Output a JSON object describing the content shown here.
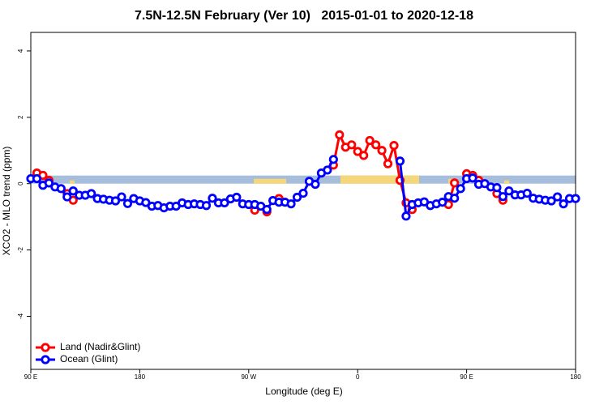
{
  "chart_data": {
    "type": "line",
    "title": "7.5N-12.5N February (Ver 10)   2015-01-01 to 2020-12-18",
    "x_label": "Longitude (deg E)",
    "y_label": "XCO2 - MLO trend (ppm)",
    "x": [
      90,
      95,
      100,
      105,
      110,
      115,
      120,
      125,
      130,
      135,
      140,
      145,
      150,
      155,
      160,
      165,
      170,
      175,
      180,
      185,
      190,
      195,
      200,
      205,
      210,
      215,
      220,
      225,
      230,
      235,
      240,
      245,
      250,
      255,
      260,
      265,
      270,
      275,
      280,
      285,
      290,
      295,
      300,
      305,
      310,
      315,
      320,
      325,
      330,
      335,
      340,
      345,
      350,
      355,
      360,
      365,
      370,
      375,
      380,
      385,
      390,
      395,
      400,
      405,
      410,
      415,
      420,
      425,
      430,
      435,
      440,
      445,
      450,
      455,
      460,
      465,
      470,
      475,
      480,
      485,
      490,
      495,
      500,
      505,
      510,
      515,
      520,
      525,
      530,
      535,
      540
    ],
    "series": [
      {
        "name": "Land (Nadir&Glint)",
        "color": "#ff0000",
        "values": [
          null,
          0.32,
          0.25,
          0.1,
          null,
          null,
          -0.3,
          -0.5,
          null,
          null,
          null,
          null,
          null,
          null,
          null,
          null,
          null,
          null,
          null,
          null,
          null,
          null,
          null,
          null,
          null,
          null,
          null,
          null,
          null,
          null,
          null,
          null,
          null,
          null,
          null,
          null,
          null,
          -0.8,
          null,
          -0.85,
          null,
          -0.45,
          null,
          null,
          null,
          null,
          null,
          null,
          null,
          null,
          0.56,
          1.47,
          1.1,
          1.17,
          0.97,
          0.85,
          1.3,
          1.17,
          1.0,
          0.6,
          1.15,
          0.1,
          -0.58,
          -0.78,
          null,
          null,
          null,
          null,
          null,
          -0.63,
          0.02,
          null,
          0.3,
          0.25,
          0.1,
          null,
          null,
          -0.3,
          -0.5,
          null,
          null,
          null,
          null,
          null,
          null,
          null,
          null,
          null,
          null,
          null,
          null
        ]
      },
      {
        "name": "Ocean (Glint)",
        "color": "#0000ff",
        "values": [
          0.15,
          0.15,
          -0.05,
          0.02,
          -0.1,
          -0.15,
          -0.4,
          -0.22,
          -0.35,
          -0.35,
          -0.3,
          -0.45,
          -0.47,
          -0.5,
          -0.52,
          -0.4,
          -0.6,
          -0.45,
          -0.52,
          -0.57,
          -0.68,
          -0.66,
          -0.73,
          -0.68,
          -0.68,
          -0.58,
          -0.63,
          -0.61,
          -0.63,
          -0.66,
          -0.44,
          -0.58,
          -0.58,
          -0.46,
          -0.41,
          -0.61,
          -0.63,
          -0.63,
          -0.68,
          -0.78,
          -0.51,
          -0.56,
          -0.56,
          -0.61,
          -0.41,
          -0.29,
          0.07,
          -0.02,
          0.32,
          0.41,
          0.73,
          null,
          null,
          null,
          null,
          null,
          null,
          null,
          null,
          null,
          null,
          0.68,
          -0.98,
          -0.63,
          -0.58,
          -0.55,
          -0.66,
          -0.61,
          -0.56,
          -0.39,
          -0.44,
          -0.15,
          0.15,
          0.17,
          -0.02,
          0.0,
          -0.1,
          -0.12,
          -0.39,
          -0.22,
          -0.34,
          -0.34,
          -0.29,
          -0.44,
          -0.47,
          -0.5,
          -0.52,
          -0.4,
          -0.61,
          -0.45,
          -0.45
        ]
      }
    ],
    "xlim": [
      90,
      540
    ],
    "xticks": [
      {
        "value": 90,
        "label": "90 E"
      },
      180,
      {
        "value": 270,
        "label": "90 W"
      },
      {
        "value": 360,
        "label": "0"
      },
      {
        "value": 450,
        "label": "90 E"
      },
      {
        "value": 540,
        "label": "180"
      }
    ],
    "ylim": [
      -5.6,
      4.56
    ],
    "yticks": [
      -4,
      -2,
      0,
      2,
      4
    ],
    "legend": "bottom-left"
  }
}
